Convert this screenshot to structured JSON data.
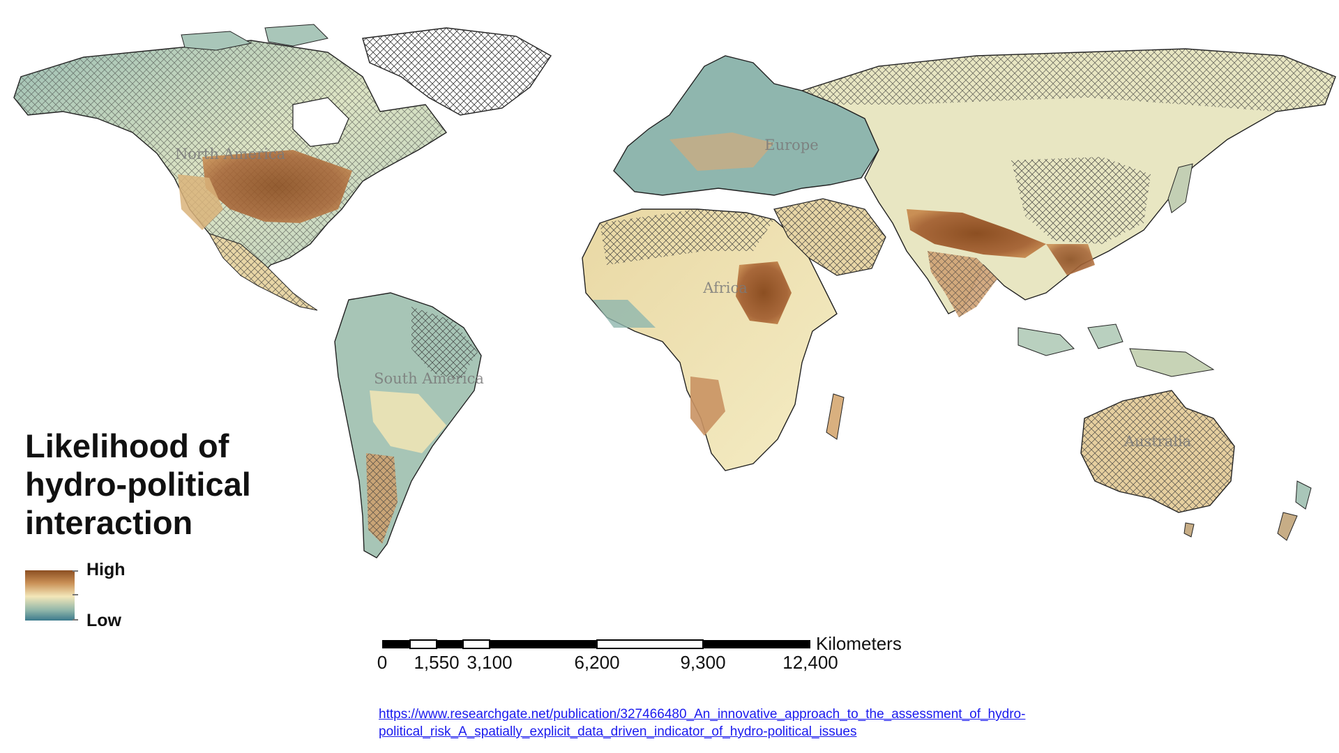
{
  "legend": {
    "title": "Likelihood of hydro-political interaction",
    "high_label": "High",
    "low_label": "Low",
    "gradient_colors": [
      "#8c4f22",
      "#c98f55",
      "#f3e7b9",
      "#8fb5a9",
      "#3b7a8c"
    ]
  },
  "map": {
    "region_labels": [
      "North America",
      "South America",
      "Europe",
      "Africa",
      "Australia"
    ],
    "hatch_meaning_shown": false,
    "colors": {
      "low": "#3b7a8c",
      "mid": "#f3e7b9",
      "high": "#8c4f22",
      "hatch": "#3a3a3a"
    }
  },
  "scale_bar": {
    "ticks": [
      "0",
      "1,550",
      "3,100",
      "6,200",
      "9,300",
      "12,400"
    ],
    "units": "Kilometers"
  },
  "source": {
    "url_text": "https://www.researchgate.net/publication/327466480_An_innovative_approach_to_the_assessment_of_hydro-political_risk_A_spatially_explicit_data_driven_indicator_of_hydro-political_issues"
  }
}
